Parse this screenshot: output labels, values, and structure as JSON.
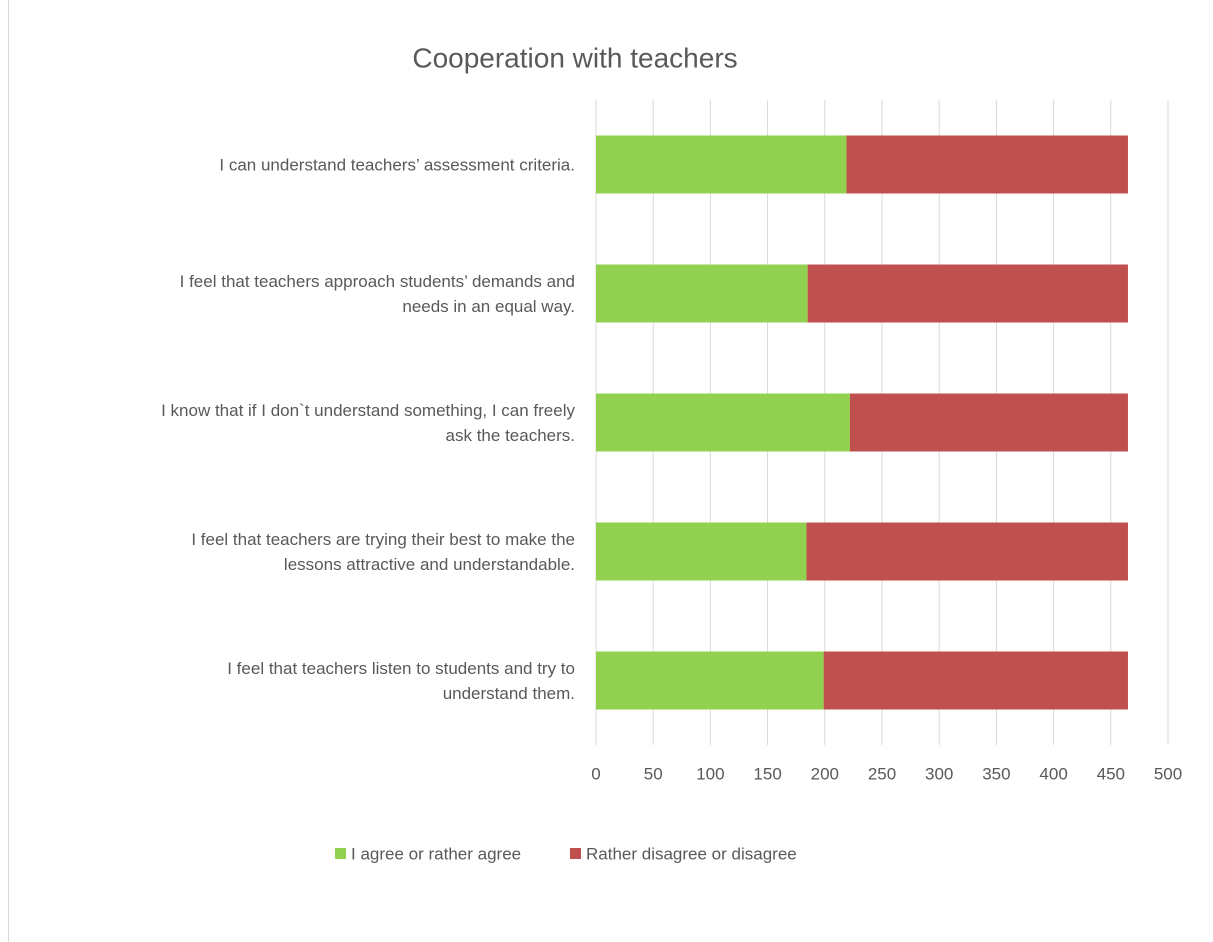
{
  "chart_data": {
    "type": "stacked_barh",
    "title": "Cooperation with teachers",
    "categories": [
      "I can understand teachers’ assessment criteria.",
      "I feel that teachers approach students’ demands and\nneeds in an equal way.",
      "I know that if I don`t understand something, I can freely\nask the teachers.",
      "I feel that teachers are trying their best to make the\nlessons attractive and understandable.",
      "I feel that teachers listen to students and try to\nunderstand them."
    ],
    "series": [
      {
        "name": "I agree or rather agree",
        "color": "#92d050",
        "values": [
          219,
          185,
          222,
          184,
          199
        ]
      },
      {
        "name": "Rather disagree or disagree",
        "color": "#c0504d",
        "values": [
          246,
          280,
          243,
          281,
          266
        ]
      }
    ],
    "xlim": [
      0,
      500
    ],
    "xticks": [
      0,
      50,
      100,
      150,
      200,
      250,
      300,
      350,
      400,
      450,
      500
    ],
    "grid": true,
    "legend": "bottom"
  }
}
